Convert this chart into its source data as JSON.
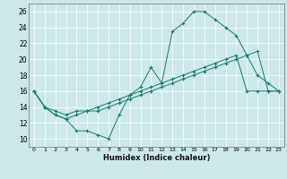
{
  "title": "",
  "xlabel": "Humidex (Indice chaleur)",
  "ylabel": "",
  "background_color": "#cce8e8",
  "line_color": "#1a7a6e",
  "xlim": [
    -0.5,
    23.5
  ],
  "ylim": [
    9,
    27
  ],
  "yticks": [
    10,
    12,
    14,
    16,
    18,
    20,
    22,
    24,
    26
  ],
  "xticks": [
    0,
    1,
    2,
    3,
    4,
    5,
    6,
    7,
    8,
    9,
    10,
    11,
    12,
    13,
    14,
    15,
    16,
    17,
    18,
    19,
    20,
    21,
    22,
    23
  ],
  "series": [
    [
      16.0,
      14.0,
      13.0,
      12.5,
      11.0,
      11.0,
      10.5,
      10.0,
      13.0,
      15.5,
      16.5,
      19.0,
      17.0,
      23.5,
      24.5,
      26.0,
      26.0,
      25.0,
      24.0,
      23.0,
      20.5,
      18.0,
      17.0,
      16.0
    ],
    [
      16.0,
      14.0,
      13.5,
      13.0,
      13.5,
      13.5,
      13.5,
      14.0,
      14.5,
      15.0,
      15.5,
      16.0,
      16.5,
      17.0,
      17.5,
      18.0,
      18.5,
      19.0,
      19.5,
      20.0,
      20.5,
      21.0,
      16.0,
      16.0
    ],
    [
      16.0,
      14.0,
      13.0,
      12.5,
      13.0,
      13.5,
      14.0,
      14.5,
      15.0,
      15.5,
      16.0,
      16.5,
      17.0,
      17.5,
      18.0,
      18.5,
      19.0,
      19.5,
      20.0,
      20.5,
      16.0,
      16.0,
      16.0,
      16.0
    ]
  ]
}
